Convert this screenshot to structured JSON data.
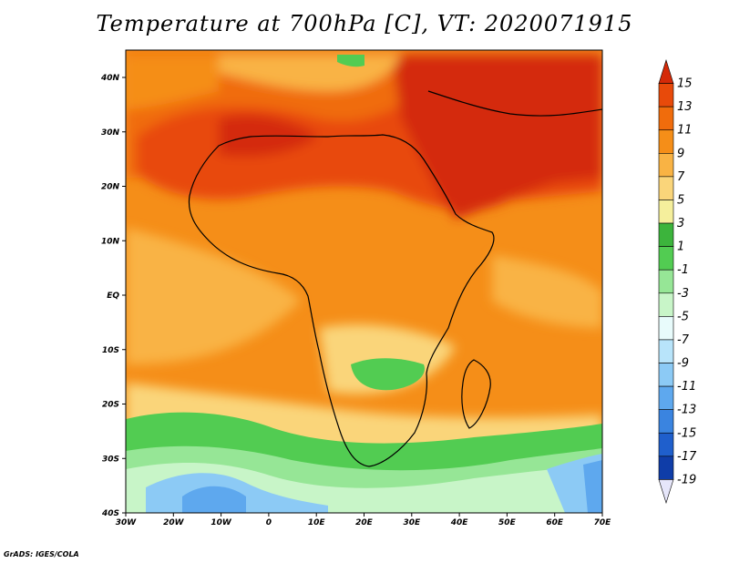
{
  "title": "Temperature at 700hPa [C], VT: 2020071915",
  "credit": "GrADS: IGES/COLA",
  "map": {
    "lon_ticks": [
      "30W",
      "20W",
      "10W",
      "0",
      "10E",
      "20E",
      "30E",
      "40E",
      "50E",
      "60E",
      "70E"
    ],
    "lat_ticks": [
      "40N",
      "30N",
      "20N",
      "10N",
      "EQ",
      "10S",
      "20S",
      "30S",
      "40S"
    ]
  },
  "colorbar": {
    "labels": [
      "15",
      "13",
      "11",
      "9",
      "7",
      "5",
      "3",
      "1",
      "-1",
      "-3",
      "-5",
      "-7",
      "-9",
      "-11",
      "-13",
      "-15",
      "-17",
      "-19"
    ],
    "colors": [
      "#d42a08",
      "#e84a0a",
      "#f06c0c",
      "#f58e18",
      "#f9b344",
      "#fad57a",
      "#f5ef9c",
      "#3cb43c",
      "#52cc52",
      "#96e696",
      "#c8f5c8",
      "#e8fbfb",
      "#b8e4fa",
      "#8ccaf5",
      "#5ea8ee",
      "#3a84e0",
      "#1f5fcc",
      "#0f3da8",
      "#0a2070"
    ]
  }
}
